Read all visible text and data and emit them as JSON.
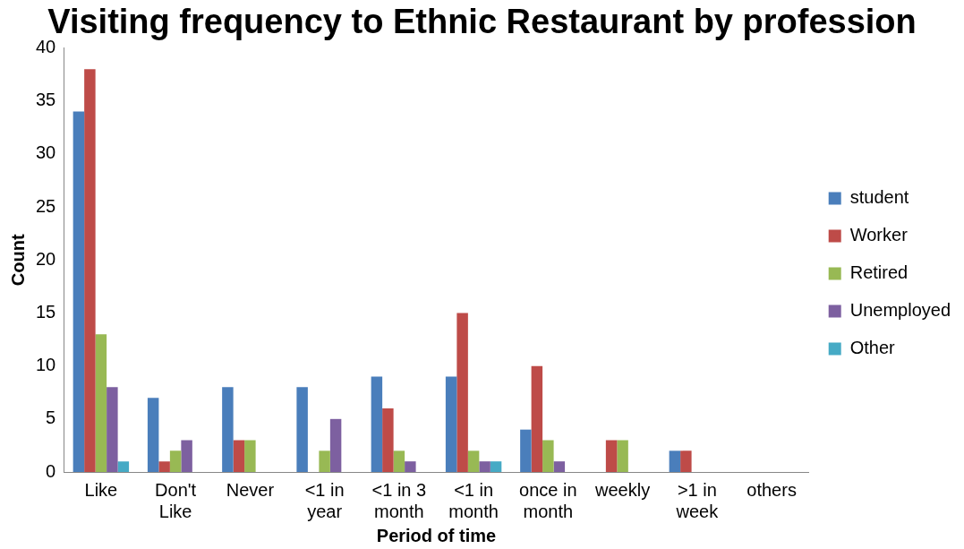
{
  "chart_data": {
    "type": "bar",
    "title": "Visiting frequency to Ethnic Restaurant by profession",
    "xlabel": "Period of time",
    "ylabel": "Count",
    "categories": [
      "Like",
      "Don't Like",
      "Never",
      "<1 in year",
      "<1 in 3 month",
      "<1 in month",
      "once in month",
      "weekly",
      ">1 in week",
      "others"
    ],
    "series": [
      {
        "name": "student",
        "color": "#4a7ebb",
        "values": [
          34,
          7,
          8,
          8,
          9,
          9,
          4,
          0,
          2,
          0
        ]
      },
      {
        "name": "Worker",
        "color": "#be4b48",
        "values": [
          38,
          1,
          3,
          0,
          6,
          15,
          10,
          3,
          2,
          0
        ]
      },
      {
        "name": "Retired",
        "color": "#98b954",
        "values": [
          13,
          2,
          3,
          2,
          2,
          2,
          3,
          3,
          0,
          0
        ]
      },
      {
        "name": "Unemployed",
        "color": "#7d60a0",
        "values": [
          8,
          3,
          0,
          5,
          1,
          1,
          1,
          0,
          0,
          0
        ]
      },
      {
        "name": "Other",
        "color": "#46aac5",
        "values": [
          1,
          0,
          0,
          0,
          0,
          1,
          0,
          0,
          0,
          0
        ]
      }
    ],
    "ylim": [
      0,
      40
    ],
    "yticks": [
      0,
      5,
      10,
      15,
      20,
      25,
      30,
      35,
      40
    ],
    "grid": false,
    "legend": "right"
  }
}
